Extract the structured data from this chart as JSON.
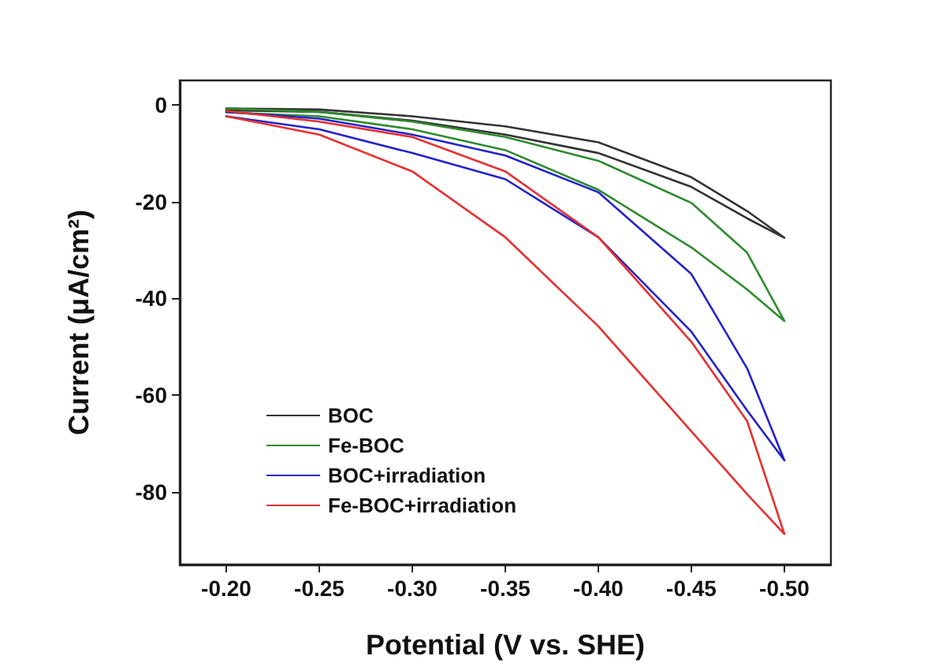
{
  "chart_data": {
    "type": "line",
    "xlabel": "Potential (V vs. SHE)",
    "ylabel": "Current (μA/cm²)",
    "xlim": [
      -0.175,
      -0.525
    ],
    "ylim": [
      -95,
      5
    ],
    "xticks": [
      {
        "value": -0.2,
        "label": "-0.20"
      },
      {
        "value": -0.25,
        "label": "-0.25"
      },
      {
        "value": -0.3,
        "label": "-0.30"
      },
      {
        "value": -0.35,
        "label": "-0.35"
      },
      {
        "value": -0.4,
        "label": "-0.40"
      },
      {
        "value": -0.45,
        "label": "-0.45"
      },
      {
        "value": -0.5,
        "label": "-0.50"
      }
    ],
    "yticks": [
      0,
      -20,
      -40,
      -60,
      -80
    ],
    "legend": "bottom left",
    "grid": false,
    "marker": "none",
    "line_style": "solid",
    "series": [
      {
        "name": "BOC",
        "color": "#333333",
        "x": [
          -0.2,
          -0.25,
          -0.3,
          -0.35,
          -0.4,
          -0.45,
          -0.48,
          -0.5,
          -0.48,
          -0.45,
          -0.4,
          -0.35,
          -0.3,
          -0.25,
          -0.2
        ],
        "values": [
          -0.8,
          -1,
          -2.4,
          -4.5,
          -7.8,
          -15,
          -22,
          -27.5,
          -23.5,
          -17,
          -10,
          -6.2,
          -3.3,
          -1.5,
          -1.2
        ]
      },
      {
        "name": "Fe-BOC",
        "color": "#2e8b2e",
        "x": [
          -0.2,
          -0.25,
          -0.3,
          -0.35,
          -0.4,
          -0.45,
          -0.48,
          -0.5,
          -0.48,
          -0.45,
          -0.4,
          -0.35,
          -0.3,
          -0.25,
          -0.2
        ],
        "values": [
          -0.8,
          -1.5,
          -3.5,
          -6.7,
          -11.6,
          -20.3,
          -30.6,
          -44.7,
          -38.2,
          -29.5,
          -17.6,
          -9.4,
          -5.1,
          -2.4,
          -1.6
        ]
      },
      {
        "name": "BOC+irradiation",
        "color": "#2222cc",
        "x": [
          -0.2,
          -0.25,
          -0.3,
          -0.35,
          -0.4,
          -0.45,
          -0.48,
          -0.5,
          -0.48,
          -0.45,
          -0.4,
          -0.35,
          -0.3,
          -0.25,
          -0.2
        ],
        "values": [
          -1.5,
          -2.9,
          -6.2,
          -10.5,
          -18.1,
          -35,
          -54.5,
          -73.5,
          -63.2,
          -46.9,
          -27.4,
          -15.4,
          -10,
          -5.1,
          -2.4
        ]
      },
      {
        "name": "Fe-BOC+irradiation",
        "color": "#e83030",
        "x": [
          -0.2,
          -0.25,
          -0.3,
          -0.35,
          -0.4,
          -0.45,
          -0.48,
          -0.5,
          -0.48,
          -0.45,
          -0.4,
          -0.35,
          -0.3,
          -0.25,
          -0.2
        ],
        "values": [
          -1.3,
          -3.5,
          -6.7,
          -13.8,
          -27.4,
          -49,
          -65.4,
          -88.7,
          -80.5,
          -67.5,
          -45.8,
          -27.4,
          -13.8,
          -6.2,
          -2.4
        ]
      }
    ]
  }
}
